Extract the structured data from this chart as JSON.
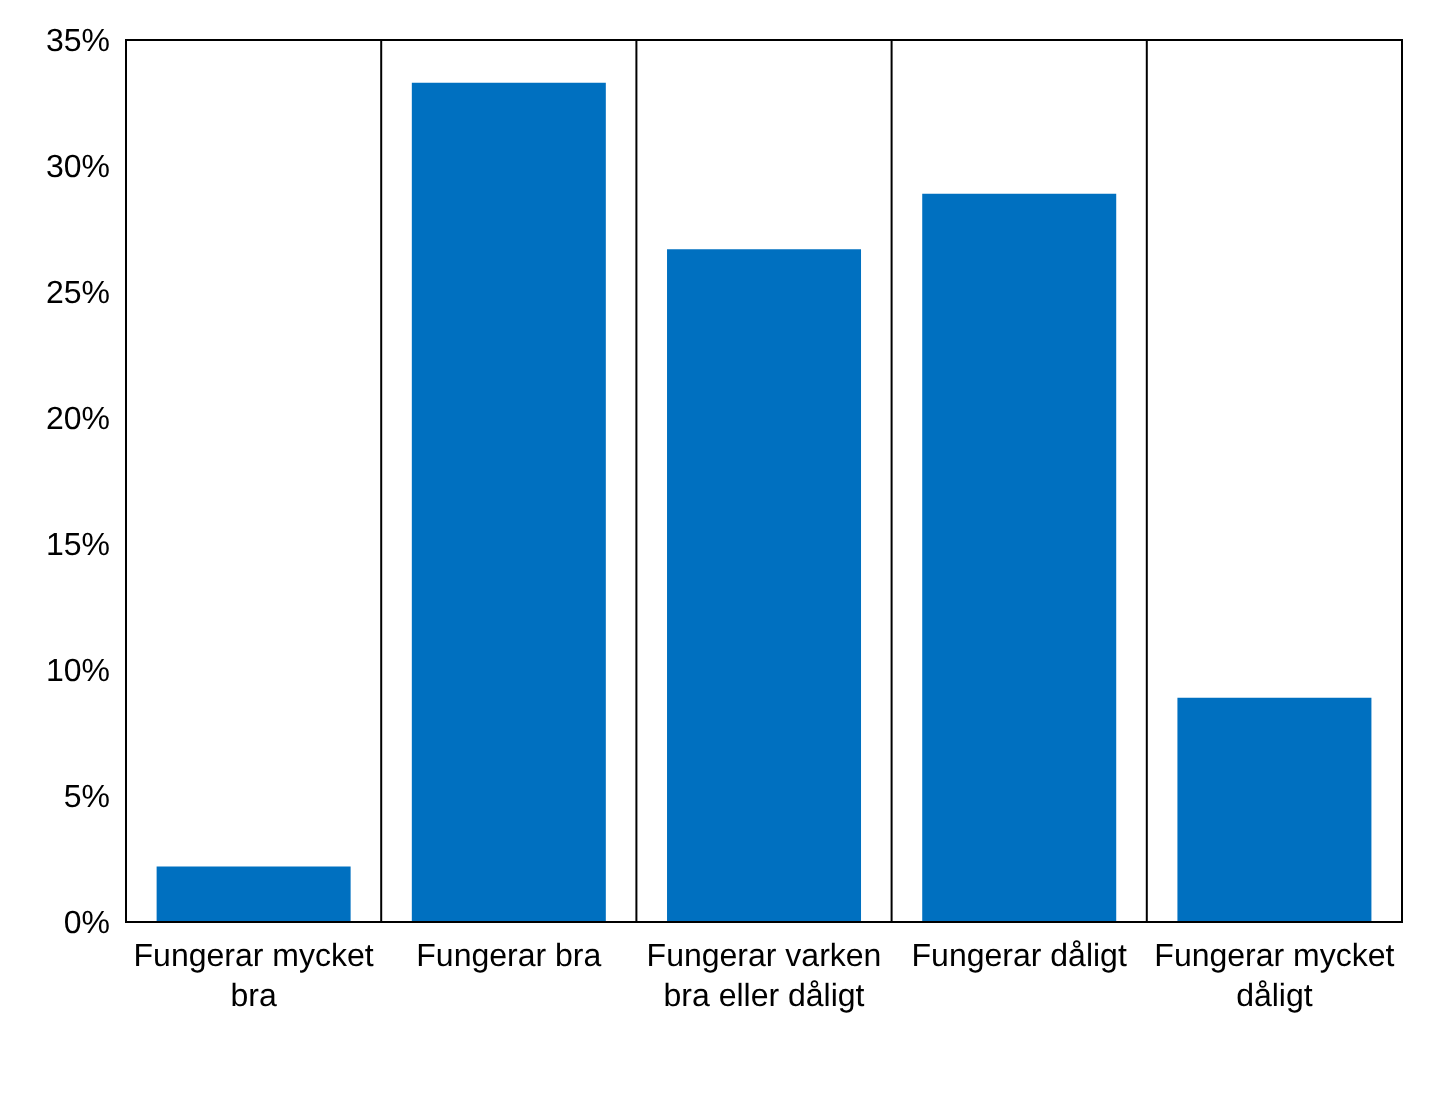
{
  "chart_data": {
    "type": "bar",
    "categories": [
      "Fungerar mycket bra",
      "Fungerar bra",
      "Fungerar varken bra eller dåligt",
      "Fungerar dåligt",
      "Fungerar mycket dåligt"
    ],
    "values": [
      2.2,
      33.3,
      26.7,
      28.9,
      8.9
    ],
    "color": "#0070c0",
    "ylim": [
      0,
      35
    ],
    "yticks": [
      {
        "value": 0,
        "label": "0%"
      },
      {
        "value": 5,
        "label": "5%"
      },
      {
        "value": 10,
        "label": "10%"
      },
      {
        "value": 15,
        "label": "15%"
      },
      {
        "value": 20,
        "label": "20%"
      },
      {
        "value": 25,
        "label": "25%"
      },
      {
        "value": 30,
        "label": "30%"
      },
      {
        "value": 35,
        "label": "35%"
      }
    ],
    "grid": "x",
    "legend": false
  }
}
